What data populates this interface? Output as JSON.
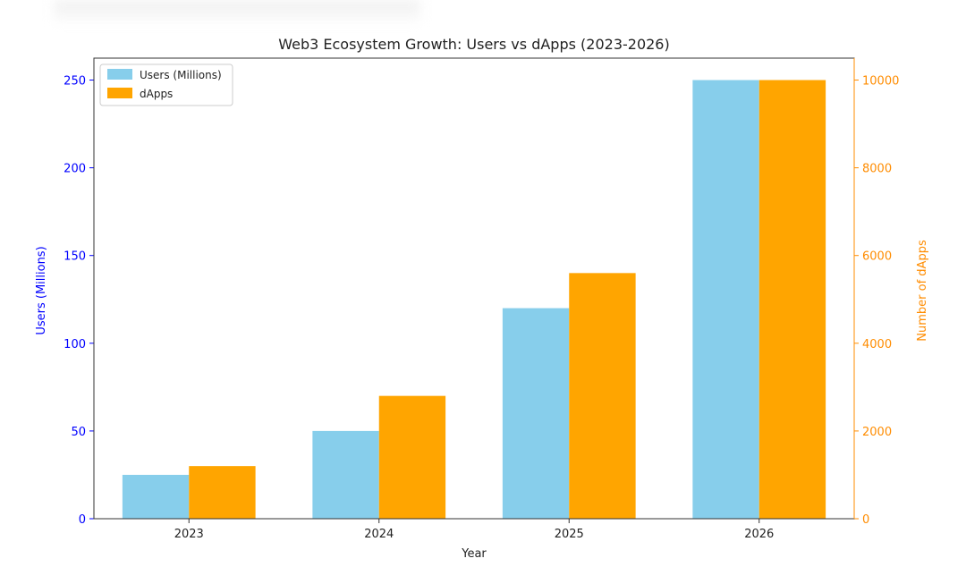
{
  "chart_data": {
    "type": "bar",
    "title": "Web3 Ecosystem Growth: Users vs dApps (2023-2026)",
    "xlabel": "Year",
    "categories": [
      "2023",
      "2024",
      "2025",
      "2026"
    ],
    "series": [
      {
        "name": "Users (Millions)",
        "axis": "left",
        "color": "#87CEEB",
        "values": [
          25,
          50,
          120,
          250
        ]
      },
      {
        "name": "dApps",
        "axis": "right",
        "color": "#FFA500",
        "values": [
          1200,
          2800,
          5600,
          10000
        ]
      }
    ],
    "y_left": {
      "label": "Users (Millions)",
      "color": "#0000FF",
      "ylim": [
        0,
        262.5
      ],
      "ticks": [
        0,
        50,
        100,
        150,
        200,
        250
      ]
    },
    "y_right": {
      "label": "Number of dApps",
      "color": "#FF8C00",
      "ylim": [
        0,
        10500
      ],
      "ticks": [
        0,
        2000,
        4000,
        6000,
        8000,
        10000
      ]
    },
    "legend": {
      "placement": "top-left",
      "entries": [
        "Users (Millions)",
        "dApps"
      ]
    },
    "grid": false
  }
}
